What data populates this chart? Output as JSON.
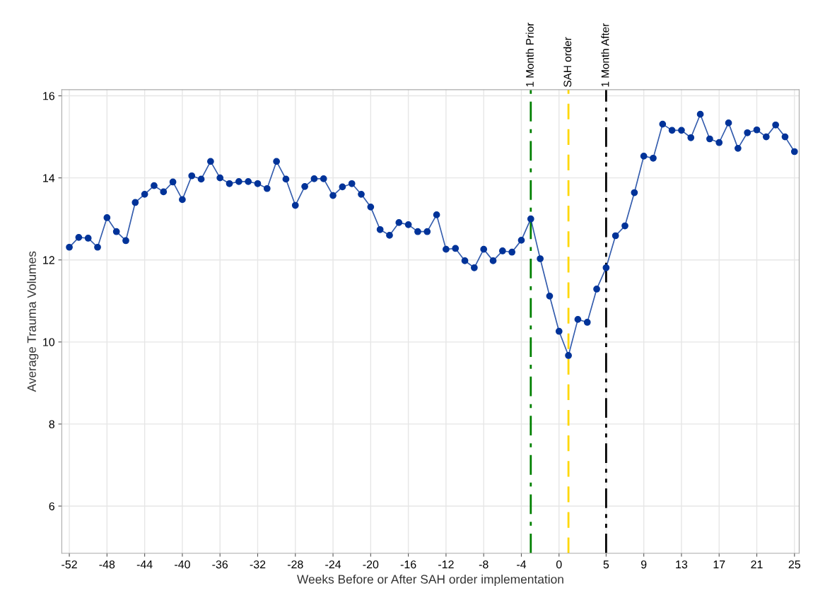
{
  "chart_data": {
    "type": "line",
    "xlabel": "Weeks Before or After SAH order implementation",
    "ylabel": "Average Trauma Volumes",
    "x": [
      -52,
      -51,
      -50,
      -49,
      -48,
      -47,
      -46,
      -45,
      -44,
      -43,
      -42,
      -41,
      -40,
      -39,
      -38,
      -37,
      -36,
      -35,
      -34,
      -33,
      -32,
      -31,
      -30,
      -29,
      -28,
      -27,
      -26,
      -25,
      -24,
      -23,
      -22,
      -21,
      -20,
      -19,
      -18,
      -17,
      -16,
      -15,
      -14,
      -13,
      -12,
      -11,
      -10,
      -9,
      -8,
      -7,
      -6,
      -5,
      -4,
      -3,
      -2,
      -1,
      0,
      1,
      2,
      3,
      4,
      5,
      6,
      7,
      8,
      9,
      10,
      11,
      12,
      13,
      14,
      15,
      16,
      17,
      18,
      19,
      20,
      21,
      22,
      23,
      24,
      25
    ],
    "series": [
      {
        "color": "#003399",
        "values": [
          12.31,
          12.55,
          12.53,
          12.31,
          13.03,
          12.69,
          12.47,
          13.4,
          13.6,
          13.81,
          13.66,
          13.9,
          13.47,
          14.05,
          13.97,
          14.4,
          14.0,
          13.86,
          13.91,
          13.91,
          13.86,
          13.74,
          14.4,
          13.97,
          13.33,
          13.79,
          13.98,
          13.98,
          13.57,
          13.78,
          13.86,
          13.6,
          13.29,
          12.74,
          12.6,
          12.91,
          12.86,
          12.69,
          12.69,
          13.1,
          12.26,
          12.28,
          11.98,
          11.81,
          12.26,
          11.98,
          12.22,
          12.19,
          12.48,
          13.0,
          12.03,
          11.12,
          10.26,
          9.67,
          10.55,
          10.48,
          11.29,
          11.81,
          12.59,
          12.83,
          13.64,
          14.53,
          14.48,
          15.31,
          15.16,
          15.16,
          14.98,
          15.55,
          14.95,
          14.86,
          15.34,
          14.72,
          15.1,
          15.17,
          15.0,
          15.29,
          15.0,
          14.64
        ]
      }
    ],
    "marker": "circle",
    "line_style": "solid",
    "grid": true,
    "xlim": [
      -52.8,
      25.5
    ],
    "ylim": [
      4.85,
      16.15
    ],
    "xticks": [
      -52,
      -48,
      -44,
      -40,
      -36,
      -32,
      -28,
      -24,
      -20,
      -16,
      -12,
      -8,
      -4,
      0,
      5,
      9,
      13,
      17,
      21,
      25
    ],
    "yticks": [
      6,
      8,
      10,
      12,
      14,
      16
    ],
    "ref_lines": [
      {
        "axis": "x",
        "value": -3,
        "label": "1 Month Prior",
        "color": "#008000",
        "line_style": "dashdot"
      },
      {
        "axis": "x",
        "value": 1,
        "label": "SAH order",
        "color": "#ffd700",
        "line_style": "dashed"
      },
      {
        "axis": "x",
        "value": 5,
        "label": "1 Month After",
        "color": "#000000",
        "line_style": "dashdotdot"
      }
    ]
  }
}
